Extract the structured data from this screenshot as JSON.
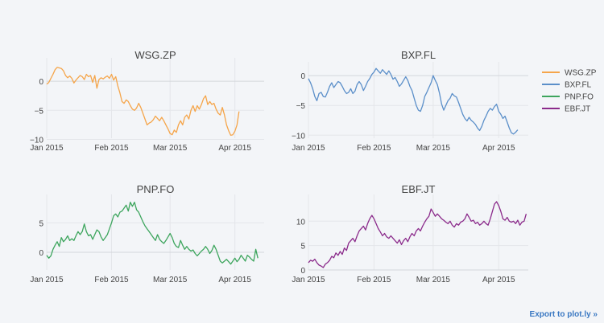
{
  "export_label": "Export to plot.ly »",
  "legend": {
    "placement": "top-right",
    "entries": [
      {
        "name": "WSG.ZP",
        "color": "#f5a54a"
      },
      {
        "name": "BXP.FL",
        "color": "#5b8fc9"
      },
      {
        "name": "PNP.FO",
        "color": "#3da55d"
      },
      {
        "name": "EBF.JT",
        "color": "#8b2b8b"
      }
    ]
  },
  "chart_data": [
    {
      "type": "line",
      "title": "WSG.ZP",
      "color": "#f5a54a",
      "xlabel": "",
      "ylabel": "",
      "xlim": [
        "2015-01-01",
        "2015-04-15"
      ],
      "ylim": [
        -9.8,
        3.2
      ],
      "yticks": [
        0,
        -5,
        -10
      ],
      "ytick_labels": [
        "0",
        "−5",
        "−10"
      ],
      "xticks": [
        "2015-01-01",
        "2015-02-01",
        "2015-03-01",
        "2015-04-01"
      ],
      "xtick_labels": [
        "Jan 2015",
        "Feb 2015",
        "Mar 2015",
        "Apr 2015"
      ],
      "grid": true,
      "x_start": "2015-01-01",
      "values": [
        -0.5,
        -0.2,
        0.5,
        1.2,
        2.0,
        2.4,
        2.3,
        2.2,
        1.8,
        1.0,
        0.6,
        0.9,
        0.5,
        -0.3,
        0.2,
        0.6,
        1.0,
        0.8,
        0.3,
        1.2,
        0.8,
        1.0,
        -0.2,
        1.0,
        -1.2,
        0.3,
        0.6,
        0.4,
        0.7,
        0.9,
        0.5,
        1.2,
        0.2,
        0.8,
        -0.8,
        -2.0,
        -3.5,
        -3.8,
        -3.2,
        -3.5,
        -4.2,
        -4.8,
        -5.0,
        -4.6,
        -3.8,
        -4.5,
        -5.5,
        -6.5,
        -7.5,
        -7.2,
        -7.0,
        -6.6,
        -6.0,
        -6.4,
        -6.8,
        -6.2,
        -6.8,
        -7.5,
        -8.2,
        -9.0,
        -9.2,
        -8.4,
        -8.8,
        -7.5,
        -6.8,
        -7.5,
        -6.2,
        -5.8,
        -6.5,
        -5.0,
        -4.2,
        -5.2,
        -4.2,
        -4.8,
        -4.0,
        -3.0,
        -2.5,
        -4.0,
        -3.5,
        -4.0,
        -3.8,
        -4.8,
        -5.5,
        -5.8,
        -4.5,
        -5.8,
        -7.5,
        -8.5,
        -9.3,
        -9.2,
        -8.6,
        -7.5,
        -5.2
      ]
    },
    {
      "type": "line",
      "title": "BXP.FL",
      "color": "#5b8fc9",
      "xlabel": "",
      "ylabel": "",
      "xlim": [
        "2015-01-01",
        "2015-04-15"
      ],
      "ylim": [
        -10.5,
        1.5
      ],
      "yticks": [
        0,
        -5,
        -10
      ],
      "ytick_labels": [
        "0",
        "−5",
        "−10"
      ],
      "xticks": [
        "2015-01-01",
        "2015-02-01",
        "2015-03-01",
        "2015-04-01"
      ],
      "xtick_labels": [
        "Jan 2015",
        "Feb 2015",
        "Mar 2015",
        "Apr 2015"
      ],
      "grid": true,
      "x_start": "2015-01-01",
      "values": [
        -0.5,
        -1.2,
        -2.2,
        -3.5,
        -4.2,
        -3.0,
        -2.8,
        -3.5,
        -3.6,
        -2.8,
        -1.8,
        -1.2,
        -2.0,
        -1.5,
        -1.0,
        -1.2,
        -1.8,
        -2.5,
        -3.0,
        -2.8,
        -2.2,
        -3.0,
        -2.6,
        -1.5,
        -1.0,
        -1.5,
        -2.5,
        -1.8,
        -1.0,
        -0.5,
        0.2,
        0.6,
        1.2,
        0.8,
        0.4,
        1.0,
        0.6,
        0.2,
        0.8,
        0.2,
        -0.6,
        -0.3,
        -1.0,
        -1.8,
        -1.4,
        -0.8,
        -0.2,
        -0.8,
        -1.8,
        -2.5,
        -3.8,
        -5.0,
        -5.8,
        -6.0,
        -5.0,
        -3.5,
        -2.8,
        -2.0,
        -1.2,
        0.0,
        -0.8,
        -1.5,
        -3.0,
        -4.8,
        -5.8,
        -5.0,
        -4.2,
        -3.8,
        -3.0,
        -3.4,
        -3.6,
        -4.5,
        -5.5,
        -6.5,
        -7.2,
        -7.6,
        -7.0,
        -7.5,
        -7.8,
        -8.2,
        -8.8,
        -9.2,
        -8.5,
        -7.5,
        -6.8,
        -6.0,
        -5.5,
        -5.8,
        -5.2,
        -4.8,
        -6.0,
        -6.5,
        -7.2,
        -6.8,
        -7.8,
        -8.8,
        -9.6,
        -9.8,
        -9.5,
        -9.1
      ]
    },
    {
      "type": "line",
      "title": "PNP.FO",
      "color": "#3da55d",
      "xlabel": "",
      "ylabel": "",
      "xlim": [
        "2015-01-01",
        "2015-04-15"
      ],
      "ylim": [
        -3.0,
        9.0
      ],
      "yticks": [
        0,
        5
      ],
      "ytick_labels": [
        "0",
        "5"
      ],
      "xticks": [
        "2015-01-01",
        "2015-02-01",
        "2015-03-01",
        "2015-04-01"
      ],
      "xtick_labels": [
        "Jan 2015",
        "Feb 2015",
        "Mar 2015",
        "Apr 2015"
      ],
      "grid": true,
      "x_start": "2015-01-01",
      "values": [
        -0.5,
        -1.0,
        -0.6,
        0.5,
        1.2,
        1.8,
        1.0,
        2.5,
        1.8,
        2.2,
        2.8,
        2.0,
        2.3,
        2.0,
        2.8,
        3.5,
        3.0,
        3.5,
        4.8,
        3.5,
        2.8,
        3.0,
        2.2,
        3.0,
        3.8,
        3.5,
        2.6,
        2.0,
        2.5,
        3.0,
        4.0,
        5.0,
        6.2,
        6.5,
        6.0,
        6.8,
        7.0,
        7.5,
        8.0,
        7.0,
        8.5,
        7.8,
        8.5,
        7.2,
        6.8,
        6.0,
        5.2,
        4.5,
        4.0,
        3.5,
        3.0,
        2.5,
        2.0,
        3.0,
        2.2,
        1.8,
        1.5,
        2.0,
        2.6,
        3.2,
        2.5,
        1.5,
        1.0,
        0.8,
        2.0,
        1.2,
        0.5,
        1.0,
        0.5,
        0.2,
        0.4,
        -0.2,
        -0.6,
        -0.2,
        0.2,
        0.5,
        1.0,
        0.5,
        -0.2,
        0.3,
        1.2,
        0.5,
        -0.5,
        -1.5,
        -1.8,
        -1.5,
        -1.2,
        -1.6,
        -2.0,
        -1.5,
        -1.0,
        -1.6,
        -1.2,
        -0.5,
        -1.0,
        -1.5,
        -0.5,
        -0.8,
        -1.2,
        -1.5,
        0.5,
        -1.0
      ]
    },
    {
      "type": "line",
      "title": "EBF.JT",
      "color": "#8b2b8b",
      "xlabel": "",
      "ylabel": "",
      "xlim": [
        "2015-01-01",
        "2015-04-15"
      ],
      "ylim": [
        0,
        14.5
      ],
      "yticks": [
        0,
        5,
        10
      ],
      "ytick_labels": [
        "0",
        "5",
        "10"
      ],
      "xticks": [
        "2015-01-01",
        "2015-02-01",
        "2015-03-01",
        "2015-04-01"
      ],
      "xtick_labels": [
        "Jan 2015",
        "Feb 2015",
        "Mar 2015",
        "Apr 2015"
      ],
      "grid": true,
      "x_start": "2015-01-01",
      "values": [
        1.5,
        2.0,
        1.8,
        2.2,
        1.5,
        1.0,
        0.8,
        0.5,
        1.2,
        1.5,
        2.0,
        2.8,
        2.5,
        3.5,
        3.0,
        3.8,
        3.2,
        4.5,
        4.0,
        5.5,
        6.0,
        6.5,
        5.8,
        7.0,
        8.0,
        8.5,
        9.0,
        8.2,
        9.5,
        10.5,
        11.2,
        10.5,
        9.5,
        8.5,
        7.8,
        7.0,
        7.5,
        6.8,
        6.5,
        7.0,
        6.5,
        6.0,
        5.5,
        6.2,
        5.2,
        6.0,
        6.5,
        5.8,
        6.8,
        7.5,
        7.0,
        8.0,
        8.5,
        8.0,
        9.0,
        9.8,
        10.5,
        11.0,
        12.5,
        11.8,
        11.0,
        11.5,
        11.0,
        10.5,
        10.2,
        9.8,
        9.5,
        10.0,
        9.2,
        8.8,
        9.5,
        9.2,
        9.8,
        10.0,
        10.5,
        11.5,
        10.8,
        10.0,
        10.2,
        9.5,
        9.8,
        9.2,
        9.5,
        10.0,
        9.5,
        9.2,
        10.5,
        12.0,
        13.5,
        14.0,
        13.2,
        12.0,
        10.5,
        10.2,
        10.8,
        10.0,
        9.8,
        10.0,
        9.5,
        10.2,
        9.2,
        9.8,
        10.0,
        11.5
      ]
    }
  ]
}
